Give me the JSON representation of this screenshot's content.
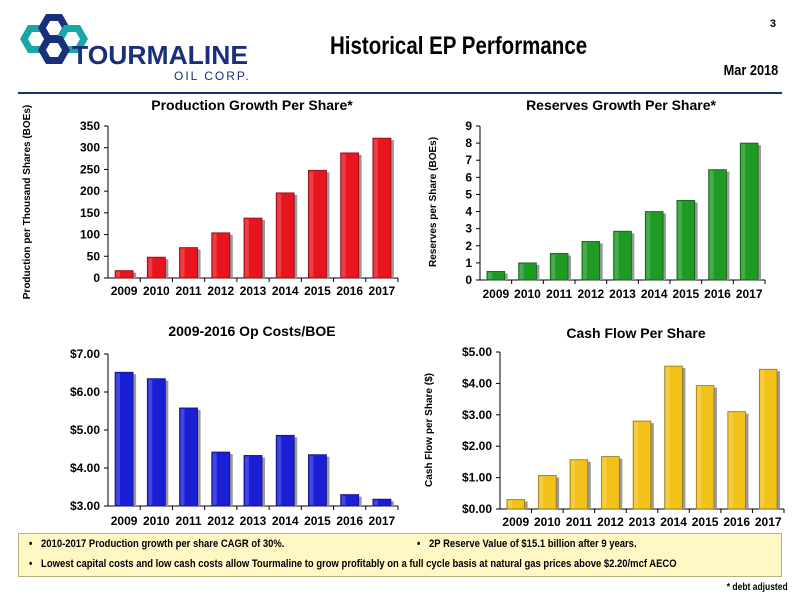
{
  "header": {
    "logo_name": "TOURMALINE",
    "logo_sub": "OIL CORP.",
    "page_number": "3",
    "title": "Historical EP Performance",
    "date": "Mar 2018"
  },
  "colors": {
    "brand_navy": "#1a2f7a",
    "brand_teal": "#1aa6a6",
    "red_bar": "#e8141e",
    "green_bar": "#1f9a25",
    "blue_bar": "#1a1fd6",
    "gold_bar": "#f2c21a"
  },
  "chart_data": [
    {
      "type": "bar",
      "title": "Production Growth Per Share*",
      "ylabel": "Production per Thousand Shares (BOEs)",
      "xlabel": "",
      "categories": [
        "2009",
        "2010",
        "2011",
        "2012",
        "2013",
        "2014",
        "2015",
        "2016",
        "2017"
      ],
      "values": [
        17,
        48,
        70,
        104,
        138,
        196,
        248,
        288,
        322
      ],
      "ylim": [
        0,
        350
      ],
      "yticks": [
        0,
        50,
        100,
        150,
        200,
        250,
        300,
        350
      ],
      "ytick_labels": [
        "0",
        "50",
        "100",
        "150",
        "200",
        "250",
        "300",
        "350"
      ],
      "color": "#e8141e"
    },
    {
      "type": "bar",
      "title": "Reserves Growth Per Share*",
      "ylabel": "Reserves per Share (BOEs)",
      "xlabel": "",
      "categories": [
        "2009",
        "2010",
        "2011",
        "2012",
        "2013",
        "2014",
        "2015",
        "2016",
        "2017"
      ],
      "values": [
        0.5,
        1.0,
        1.55,
        2.25,
        2.85,
        4.0,
        4.65,
        6.45,
        8.0
      ],
      "ylim": [
        0,
        9
      ],
      "yticks": [
        0,
        1,
        2,
        3,
        4,
        5,
        6,
        7,
        8,
        9
      ],
      "ytick_labels": [
        "0",
        "1",
        "2",
        "3",
        "4",
        "5",
        "6",
        "7",
        "8",
        "9"
      ],
      "color": "#1f9a25"
    },
    {
      "type": "bar",
      "title": "2009-2016 Op Costs/BOE",
      "ylabel": "",
      "xlabel": "",
      "categories": [
        "2009",
        "2010",
        "2011",
        "2012",
        "2013",
        "2014",
        "2015",
        "2016",
        "2017"
      ],
      "values": [
        6.52,
        6.35,
        5.58,
        4.42,
        4.33,
        4.86,
        4.35,
        3.3,
        3.18
      ],
      "ylim": [
        3.0,
        7.0
      ],
      "yticks": [
        3,
        4,
        5,
        6,
        7
      ],
      "ytick_labels": [
        "$3.00",
        "$4.00",
        "$5.00",
        "$6.00",
        "$7.00"
      ],
      "color": "#1a1fd6"
    },
    {
      "type": "bar",
      "title": "Cash Flow Per Share",
      "ylabel": "Cash Flow per Share ($)",
      "xlabel": "",
      "categories": [
        "2009",
        "2010",
        "2011",
        "2012",
        "2013",
        "2014",
        "2015",
        "2016",
        "2017"
      ],
      "values": [
        0.3,
        1.07,
        1.57,
        1.67,
        2.8,
        4.55,
        3.93,
        3.1,
        4.45
      ],
      "ylim": [
        0,
        5
      ],
      "yticks": [
        0,
        1,
        2,
        3,
        4,
        5
      ],
      "ytick_labels": [
        "$0.00",
        "$1.00",
        "$2.00",
        "$3.00",
        "$4.00",
        "$5.00"
      ],
      "color": "#f2c21a"
    }
  ],
  "bullets": {
    "b1": "2010-2017 Production growth per share CAGR of 30%.",
    "b2": "2P Reserve Value of $15.1 billion after 9 years.",
    "b3": "Lowest capital costs and low cash costs allow Tourmaline to grow profitably on a full cycle basis at natural gas prices above $2.20/mcf AECO",
    "bullet_char": "•"
  },
  "footnote": "* debt adjusted"
}
